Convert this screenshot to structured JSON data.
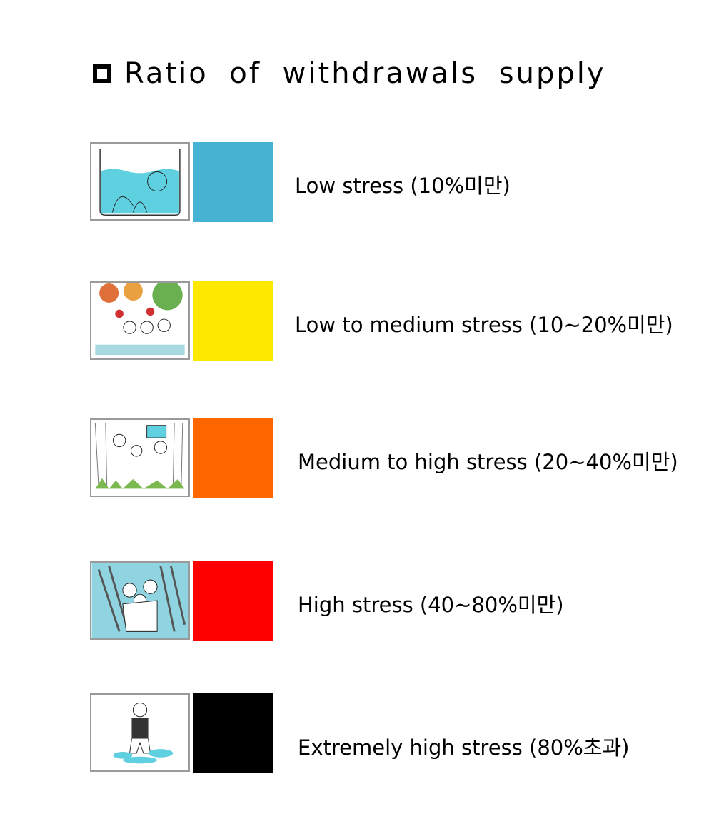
{
  "title": "Ratio of withdrawals supply",
  "items": [
    {
      "label": "Low stress (10%미만)",
      "color": "#47B3D4",
      "icon": "beaker-water-illustration"
    },
    {
      "label": "Low to medium stress (10~20%미만)",
      "color": "#FFE800",
      "icon": "children-garden-illustration"
    },
    {
      "label": "Medium to high stress (20~40%미만)",
      "color": "#FF6600",
      "icon": "children-forest-illustration"
    },
    {
      "label": "High stress (40~80%미만)",
      "color": "#FF0000",
      "icon": "children-storm-illustration"
    },
    {
      "label": "Extremely high stress (80%초과)",
      "color": "#000000",
      "icon": "person-puddle-illustration"
    }
  ]
}
